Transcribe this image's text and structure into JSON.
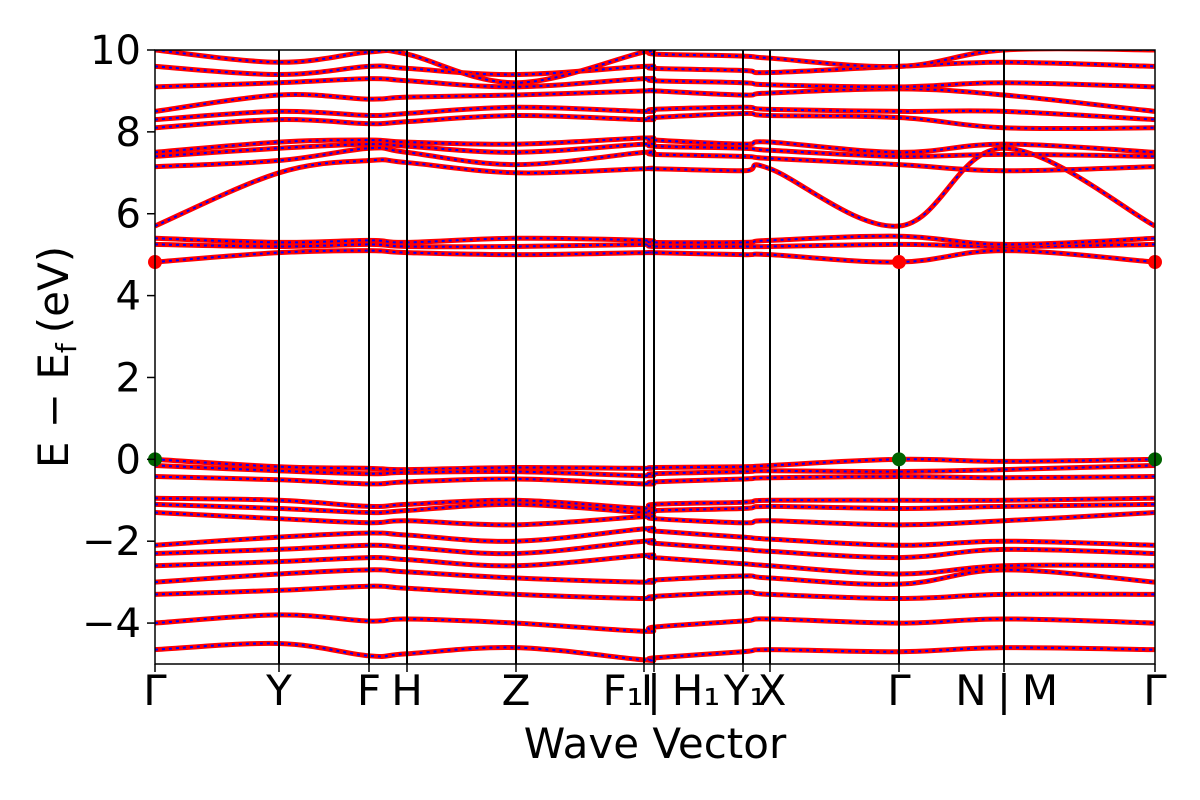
{
  "chart_data": {
    "type": "line",
    "title": "",
    "xlabel": "Wave Vector",
    "ylabel": "E − E_f (eV)",
    "ylabel_parts": {
      "main": "E − E",
      "sub": "f",
      "unit": "(eV)"
    },
    "ylim": [
      -5,
      10
    ],
    "xlim": [
      0,
      1
    ],
    "yticks": [
      "−4",
      "−2",
      "0",
      "2",
      "4",
      "6",
      "8",
      "10"
    ],
    "ytick_values": [
      -4,
      -2,
      0,
      2,
      4,
      6,
      8,
      10
    ],
    "grid": false,
    "legend": "none",
    "kpoints": [
      {
        "label": "Γ",
        "x": 0.0
      },
      {
        "label": "Y",
        "x": 0.124
      },
      {
        "label": "F",
        "x": 0.214
      },
      {
        "label": "H",
        "x": 0.252
      },
      {
        "label": "Z",
        "x": 0.361
      },
      {
        "label": "F₁|I",
        "x": 0.489
      },
      {
        "label": "I|H₁",
        "x": 0.499
      },
      {
        "label": "Y₁",
        "x": 0.588
      },
      {
        "label": "X",
        "x": 0.615
      },
      {
        "label": "Γ",
        "x": 0.744
      },
      {
        "label": "N|M",
        "x": 0.849
      },
      {
        "label": "Γ",
        "x": 1.0
      }
    ],
    "tick_texts": [
      {
        "text": "Γ",
        "x": 0.0
      },
      {
        "text": "Y",
        "x": 0.124
      },
      {
        "text": "F",
        "x": 0.214
      },
      {
        "text": "H",
        "x": 0.252
      },
      {
        "text": "Z",
        "x": 0.361
      },
      {
        "text": "F₁",
        "x": 0.468
      },
      {
        "text": "I",
        "x": 0.492
      },
      {
        "text": "|",
        "x": 0.499
      },
      {
        "text": "H₁",
        "x": 0.541
      },
      {
        "text": "Y₁",
        "x": 0.59
      },
      {
        "text": "X",
        "x": 0.617
      },
      {
        "text": "Γ",
        "x": 0.744
      },
      {
        "text": "N",
        "x": 0.816
      },
      {
        "text": "|",
        "x": 0.849
      },
      {
        "text": "M",
        "x": 0.885
      },
      {
        "text": "Γ",
        "x": 1.0
      }
    ],
    "colors": {
      "band_main": "#ff0000",
      "band_dashed": "#0000ff",
      "vbm": "#006400",
      "cbm": "#ff0000",
      "axis": "#000000"
    },
    "markers": [
      {
        "kind": "vbm",
        "x": 0.0,
        "y": 0.0
      },
      {
        "kind": "vbm",
        "x": 0.744,
        "y": 0.0
      },
      {
        "kind": "vbm",
        "x": 1.0,
        "y": 0.0
      },
      {
        "kind": "cbm",
        "x": 0.0,
        "y": 4.82
      },
      {
        "kind": "cbm",
        "x": 0.744,
        "y": 4.82
      },
      {
        "kind": "cbm",
        "x": 1.0,
        "y": 4.82
      }
    ],
    "series": [
      {
        "x": [
          0,
          0.124,
          0.214,
          0.252,
          0.361,
          0.489,
          0.499,
          0.588,
          0.615,
          0.744,
          0.849,
          1.0
        ],
        "y": [
          0.0,
          -0.18,
          -0.22,
          -0.25,
          -0.2,
          -0.22,
          -0.2,
          -0.18,
          -0.15,
          0.0,
          -0.05,
          0.0
        ]
      },
      {
        "x": [
          0,
          0.124,
          0.214,
          0.252,
          0.361,
          0.489,
          0.499,
          0.588,
          0.615,
          0.744,
          0.849,
          1.0
        ],
        "y": [
          -0.15,
          -0.28,
          -0.35,
          -0.32,
          -0.3,
          -0.4,
          -0.35,
          -0.3,
          -0.28,
          -0.3,
          -0.25,
          -0.15
        ]
      },
      {
        "x": [
          0,
          0.124,
          0.214,
          0.252,
          0.361,
          0.489,
          0.499,
          0.588,
          0.615,
          0.744,
          0.849,
          1.0
        ],
        "y": [
          -0.42,
          -0.5,
          -0.6,
          -0.55,
          -0.48,
          -0.6,
          -0.55,
          -0.48,
          -0.45,
          -0.42,
          -0.45,
          -0.42
        ]
      },
      {
        "x": [
          0,
          0.124,
          0.214,
          0.252,
          0.361,
          0.489,
          0.499,
          0.588,
          0.615,
          0.744,
          0.849,
          1.0
        ],
        "y": [
          -0.95,
          -1.0,
          -1.15,
          -1.1,
          -1.0,
          -1.2,
          -1.1,
          -1.05,
          -1.0,
          -1.0,
          -1.0,
          -0.95
        ]
      },
      {
        "x": [
          0,
          0.124,
          0.214,
          0.252,
          0.361,
          0.489,
          0.499,
          0.588,
          0.615,
          0.744,
          0.849,
          1.0
        ],
        "y": [
          -1.1,
          -1.2,
          -1.3,
          -1.25,
          -1.1,
          -1.3,
          -1.25,
          -1.2,
          -1.15,
          -1.2,
          -1.15,
          -1.1
        ]
      },
      {
        "x": [
          0,
          0.124,
          0.214,
          0.252,
          0.361,
          0.489,
          0.499,
          0.588,
          0.615,
          0.744,
          0.849,
          1.0
        ],
        "y": [
          -1.3,
          -1.45,
          -1.55,
          -1.5,
          -1.6,
          -1.4,
          -1.45,
          -1.55,
          -1.5,
          -1.6,
          -1.5,
          -1.3
        ]
      },
      {
        "x": [
          0,
          0.124,
          0.214,
          0.252,
          0.361,
          0.489,
          0.499,
          0.588,
          0.615,
          0.744,
          0.849,
          1.0
        ],
        "y": [
          -2.1,
          -1.9,
          -1.8,
          -1.85,
          -2.0,
          -1.7,
          -1.75,
          -1.9,
          -1.95,
          -2.1,
          -2.0,
          -2.1
        ]
      },
      {
        "x": [
          0,
          0.124,
          0.214,
          0.252,
          0.361,
          0.489,
          0.499,
          0.588,
          0.615,
          0.744,
          0.849,
          1.0
        ],
        "y": [
          -2.3,
          -2.2,
          -2.1,
          -2.15,
          -2.3,
          -2.0,
          -2.05,
          -2.2,
          -2.25,
          -2.4,
          -2.2,
          -2.3
        ]
      },
      {
        "x": [
          0,
          0.124,
          0.214,
          0.252,
          0.361,
          0.489,
          0.499,
          0.588,
          0.615,
          0.744,
          0.849,
          1.0
        ],
        "y": [
          -2.6,
          -2.5,
          -2.4,
          -2.45,
          -2.6,
          -2.35,
          -2.4,
          -2.55,
          -2.6,
          -2.8,
          -2.6,
          -2.6
        ]
      },
      {
        "x": [
          0,
          0.124,
          0.214,
          0.252,
          0.361,
          0.489,
          0.499,
          0.588,
          0.615,
          0.744,
          0.849,
          1.0
        ],
        "y": [
          -3.0,
          -2.8,
          -2.7,
          -2.75,
          -2.9,
          -3.0,
          -2.95,
          -2.85,
          -2.9,
          -3.05,
          -2.7,
          -3.0
        ]
      },
      {
        "x": [
          0,
          0.124,
          0.214,
          0.252,
          0.361,
          0.489,
          0.499,
          0.588,
          0.615,
          0.744,
          0.849,
          1.0
        ],
        "y": [
          -3.3,
          -3.2,
          -3.1,
          -3.15,
          -3.3,
          -3.4,
          -3.35,
          -3.25,
          -3.3,
          -3.4,
          -3.3,
          -3.3
        ]
      },
      {
        "x": [
          0,
          0.124,
          0.214,
          0.252,
          0.361,
          0.489,
          0.499,
          0.588,
          0.615,
          0.744,
          0.849,
          1.0
        ],
        "y": [
          -4.0,
          -3.8,
          -3.95,
          -3.9,
          -4.0,
          -4.2,
          -4.1,
          -3.95,
          -3.9,
          -4.0,
          -3.9,
          -4.0
        ]
      },
      {
        "x": [
          0,
          0.124,
          0.214,
          0.252,
          0.361,
          0.489,
          0.499,
          0.588,
          0.615,
          0.744,
          0.849,
          1.0
        ],
        "y": [
          -4.65,
          -4.5,
          -4.8,
          -4.75,
          -4.6,
          -4.9,
          -4.85,
          -4.7,
          -4.65,
          -4.7,
          -4.6,
          -4.65
        ]
      },
      {
        "x": [
          0,
          0.124,
          0.214,
          0.252,
          0.361,
          0.489,
          0.499,
          0.588,
          0.615,
          0.744,
          0.849,
          1.0
        ],
        "y": [
          4.82,
          5.05,
          5.1,
          5.05,
          5.0,
          5.05,
          5.05,
          5.0,
          5.0,
          4.82,
          5.1,
          4.82
        ]
      },
      {
        "x": [
          0,
          0.124,
          0.214,
          0.252,
          0.361,
          0.489,
          0.499,
          0.588,
          0.615,
          0.744,
          0.849,
          1.0
        ],
        "y": [
          5.25,
          5.2,
          5.25,
          5.2,
          5.2,
          5.25,
          5.2,
          5.2,
          5.2,
          5.25,
          5.2,
          5.25
        ]
      },
      {
        "x": [
          0,
          0.124,
          0.214,
          0.252,
          0.361,
          0.489,
          0.499,
          0.588,
          0.615,
          0.744,
          0.849,
          1.0
        ],
        "y": [
          5.4,
          5.3,
          5.35,
          5.3,
          5.4,
          5.35,
          5.3,
          5.3,
          5.35,
          5.45,
          5.25,
          5.4
        ]
      },
      {
        "x": [
          0,
          0.124,
          0.214,
          0.252,
          0.361,
          0.489,
          0.499,
          0.588,
          0.615,
          0.744,
          0.849,
          1.0
        ],
        "y": [
          5.7,
          7.0,
          7.3,
          7.25,
          7.0,
          7.1,
          7.1,
          7.05,
          7.1,
          5.7,
          7.6,
          5.7
        ]
      },
      {
        "x": [
          0,
          0.124,
          0.214,
          0.252,
          0.361,
          0.489,
          0.499,
          0.588,
          0.615,
          0.744,
          0.849,
          1.0
        ],
        "y": [
          7.15,
          7.3,
          7.6,
          7.5,
          7.2,
          7.5,
          7.45,
          7.4,
          7.35,
          7.2,
          7.05,
          7.15
        ]
      },
      {
        "x": [
          0,
          0.124,
          0.214,
          0.252,
          0.361,
          0.489,
          0.499,
          0.588,
          0.615,
          0.744,
          0.849,
          1.0
        ],
        "y": [
          7.4,
          7.6,
          7.7,
          7.65,
          7.5,
          7.7,
          7.65,
          7.6,
          7.55,
          7.4,
          7.45,
          7.4
        ]
      },
      {
        "x": [
          0,
          0.124,
          0.214,
          0.252,
          0.361,
          0.489,
          0.499,
          0.588,
          0.615,
          0.744,
          0.849,
          1.0
        ],
        "y": [
          7.5,
          7.75,
          7.8,
          7.75,
          7.7,
          7.85,
          7.8,
          7.7,
          7.75,
          7.5,
          7.7,
          7.5
        ]
      },
      {
        "x": [
          0,
          0.124,
          0.214,
          0.252,
          0.361,
          0.489,
          0.499,
          0.588,
          0.615,
          0.744,
          0.849,
          1.0
        ],
        "y": [
          8.1,
          8.3,
          8.2,
          8.25,
          8.4,
          8.3,
          8.35,
          8.45,
          8.4,
          8.35,
          8.1,
          8.1
        ]
      },
      {
        "x": [
          0,
          0.124,
          0.214,
          0.252,
          0.361,
          0.489,
          0.499,
          0.588,
          0.615,
          0.744,
          0.849,
          1.0
        ],
        "y": [
          8.3,
          8.5,
          8.4,
          8.45,
          8.6,
          8.5,
          8.55,
          8.6,
          8.55,
          8.5,
          8.5,
          8.3
        ]
      },
      {
        "x": [
          0,
          0.124,
          0.214,
          0.252,
          0.361,
          0.489,
          0.499,
          0.588,
          0.615,
          0.744,
          0.849,
          1.0
        ],
        "y": [
          8.5,
          8.9,
          8.8,
          8.85,
          8.9,
          9.0,
          9.0,
          8.9,
          8.95,
          9.05,
          8.9,
          8.5
        ]
      },
      {
        "x": [
          0,
          0.124,
          0.214,
          0.252,
          0.361,
          0.489,
          0.499,
          0.588,
          0.615,
          0.744,
          0.849,
          1.0
        ],
        "y": [
          9.1,
          9.2,
          9.3,
          9.25,
          9.1,
          9.3,
          9.25,
          9.2,
          9.15,
          9.1,
          9.2,
          9.1
        ]
      },
      {
        "x": [
          0,
          0.124,
          0.214,
          0.252,
          0.361,
          0.489,
          0.499,
          0.588,
          0.615,
          0.744,
          0.849,
          1.0
        ],
        "y": [
          9.6,
          9.4,
          9.6,
          9.55,
          9.4,
          9.6,
          9.55,
          9.5,
          9.45,
          9.6,
          9.7,
          9.6
        ]
      },
      {
        "x": [
          0,
          0.124,
          0.214,
          0.252,
          0.361,
          0.489,
          0.499,
          0.588,
          0.615,
          0.744,
          0.849,
          1.0
        ],
        "y": [
          10.0,
          9.7,
          9.95,
          9.9,
          9.2,
          9.95,
          9.9,
          9.85,
          9.8,
          9.6,
          10.0,
          10.0
        ]
      }
    ]
  }
}
